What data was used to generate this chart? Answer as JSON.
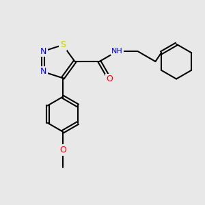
{
  "bg_color": "#e8e8e8",
  "figsize": [
    3.0,
    3.0
  ],
  "dpi": 100,
  "bond_color": "#000000",
  "bond_lw": 1.5,
  "font_size": 9,
  "colors": {
    "N": "#0000ff",
    "S": "#cccc00",
    "O": "#ff0000",
    "H": "#444444",
    "C": "#000000"
  }
}
